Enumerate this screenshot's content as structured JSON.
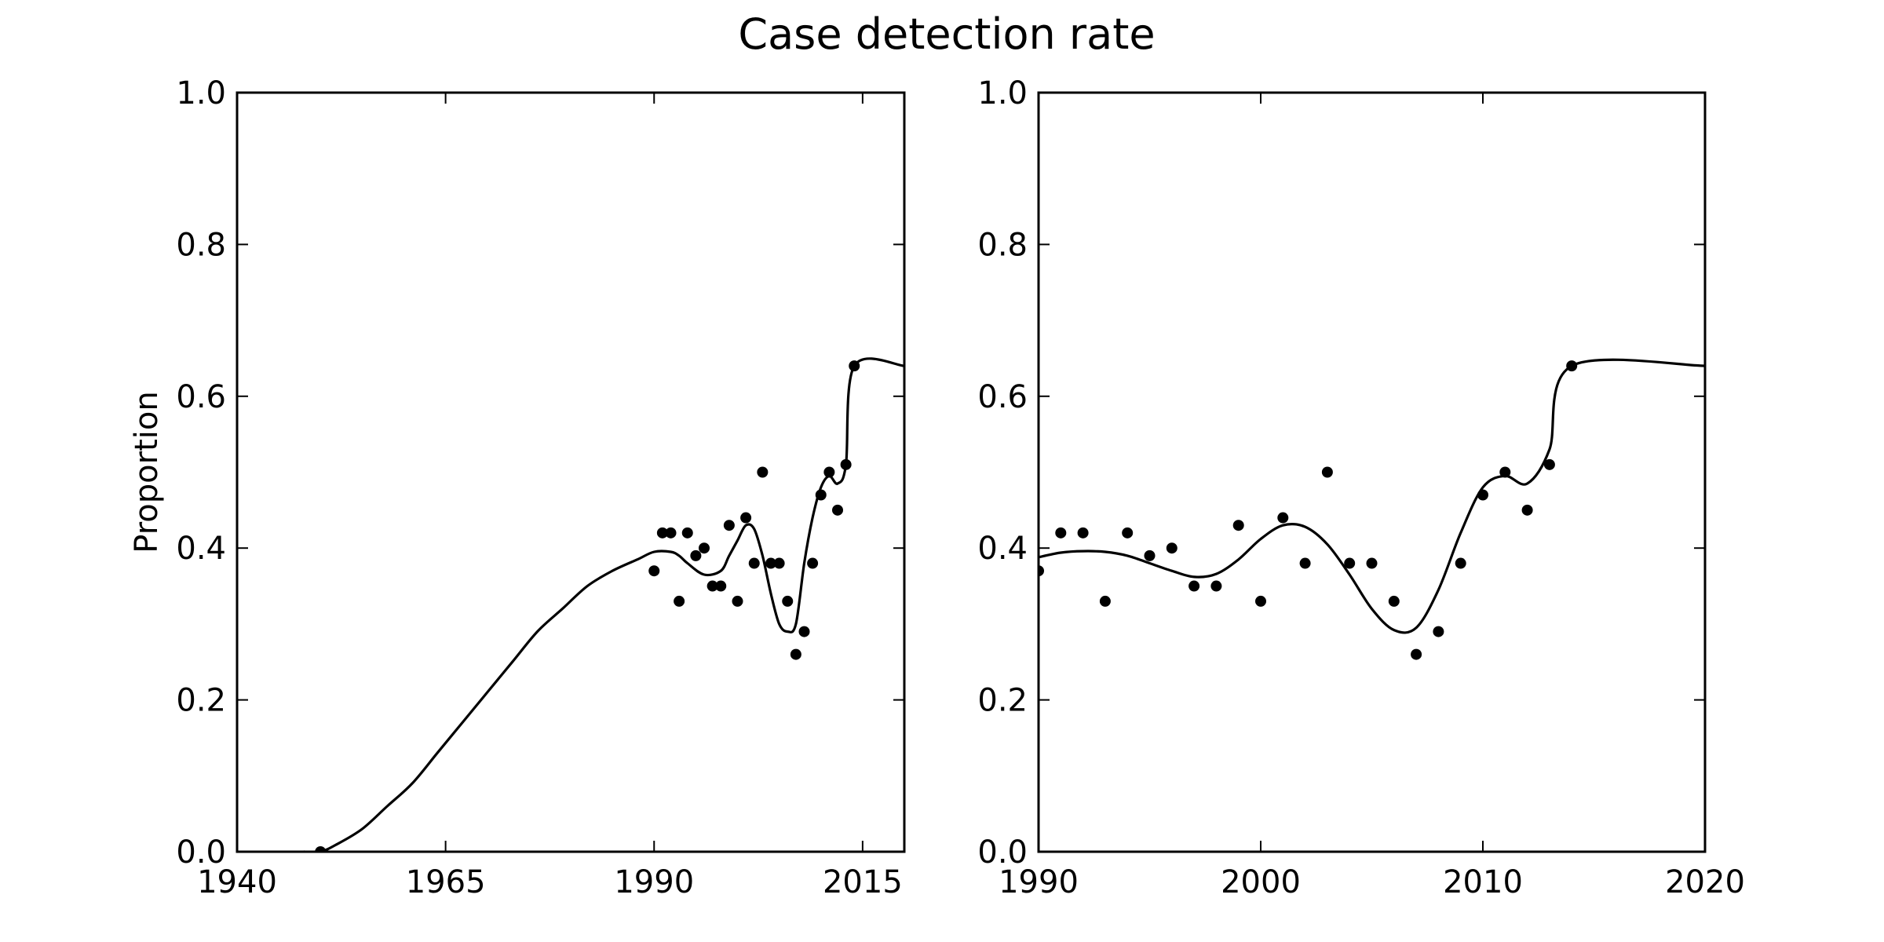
{
  "figure": {
    "title": "Case detection rate"
  },
  "chart_data": [
    {
      "type": "scatter",
      "title": "",
      "xlabel": "",
      "ylabel": "Proportion",
      "xlim": [
        1940,
        2020
      ],
      "ylim": [
        0.0,
        1.0
      ],
      "xticks": [
        "1940",
        "1965",
        "1990",
        "2015"
      ],
      "yticks": [
        "0.0",
        "0.2",
        "0.4",
        "0.6",
        "0.8",
        "1.0"
      ],
      "grid": false,
      "series": [
        {
          "kind": "points",
          "x": [
            1950,
            1990,
            1991,
            1992,
            1993,
            1994,
            1995,
            1996,
            1997,
            1998,
            1999,
            2000,
            2001,
            2002,
            2003,
            2004,
            2005,
            2006,
            2007,
            2008,
            2009,
            2010,
            2011,
            2012,
            2013,
            2014
          ],
          "y": [
            0.0,
            0.37,
            0.42,
            0.42,
            0.33,
            0.42,
            0.39,
            0.4,
            0.35,
            0.35,
            0.43,
            0.33,
            0.44,
            0.38,
            0.5,
            0.38,
            0.38,
            0.33,
            0.26,
            0.29,
            0.38,
            0.47,
            0.5,
            0.45,
            0.51,
            0.64
          ]
        },
        {
          "kind": "curve",
          "x": [
            1948,
            1950,
            1952,
            1955,
            1958,
            1961,
            1964,
            1967,
            1970,
            1973,
            1976,
            1979,
            1982,
            1985,
            1988,
            1990,
            1992,
            1993,
            1994,
            1996,
            1998,
            1999,
            2000,
            2001,
            2002,
            2003,
            2004,
            2005,
            2006,
            2007,
            2008,
            2009,
            2010,
            2011,
            2012,
            2013,
            2014,
            2020
          ],
          "y": [
            0.0,
            0.0,
            0.01,
            0.03,
            0.06,
            0.09,
            0.13,
            0.17,
            0.21,
            0.25,
            0.29,
            0.32,
            0.35,
            0.37,
            0.385,
            0.395,
            0.395,
            0.39,
            0.38,
            0.365,
            0.37,
            0.39,
            0.41,
            0.43,
            0.425,
            0.39,
            0.34,
            0.3,
            0.29,
            0.3,
            0.38,
            0.44,
            0.48,
            0.495,
            0.485,
            0.51,
            0.64,
            0.64
          ]
        }
      ]
    },
    {
      "type": "scatter",
      "title": "",
      "xlabel": "",
      "ylabel": "",
      "xlim": [
        1990,
        2020
      ],
      "ylim": [
        0.0,
        1.0
      ],
      "xticks": [
        "1990",
        "2000",
        "2010",
        "2020"
      ],
      "yticks": [
        "0.0",
        "0.2",
        "0.4",
        "0.6",
        "0.8",
        "1.0"
      ],
      "grid": false,
      "series": [
        {
          "kind": "points",
          "x": [
            1990,
            1991,
            1992,
            1993,
            1994,
            1995,
            1996,
            1997,
            1998,
            1999,
            2000,
            2001,
            2002,
            2003,
            2004,
            2005,
            2006,
            2007,
            2008,
            2009,
            2010,
            2011,
            2012,
            2013,
            2014
          ],
          "y": [
            0.37,
            0.42,
            0.42,
            0.33,
            0.42,
            0.39,
            0.4,
            0.35,
            0.35,
            0.43,
            0.33,
            0.44,
            0.38,
            0.5,
            0.38,
            0.38,
            0.33,
            0.26,
            0.29,
            0.38,
            0.47,
            0.5,
            0.45,
            0.51,
            0.64
          ]
        },
        {
          "kind": "curve",
          "x": [
            1990,
            1991,
            1992,
            1993,
            1994,
            1995,
            1996,
            1997,
            1998,
            1999,
            2000,
            2001,
            2002,
            2003,
            2004,
            2005,
            2006,
            2007,
            2008,
            2009,
            2010,
            2011,
            2012,
            2013,
            2014,
            2020
          ],
          "y": [
            0.388,
            0.394,
            0.396,
            0.395,
            0.39,
            0.38,
            0.37,
            0.362,
            0.366,
            0.385,
            0.412,
            0.43,
            0.428,
            0.405,
            0.365,
            0.32,
            0.292,
            0.295,
            0.345,
            0.42,
            0.48,
            0.495,
            0.485,
            0.53,
            0.64,
            0.64
          ]
        }
      ]
    }
  ]
}
